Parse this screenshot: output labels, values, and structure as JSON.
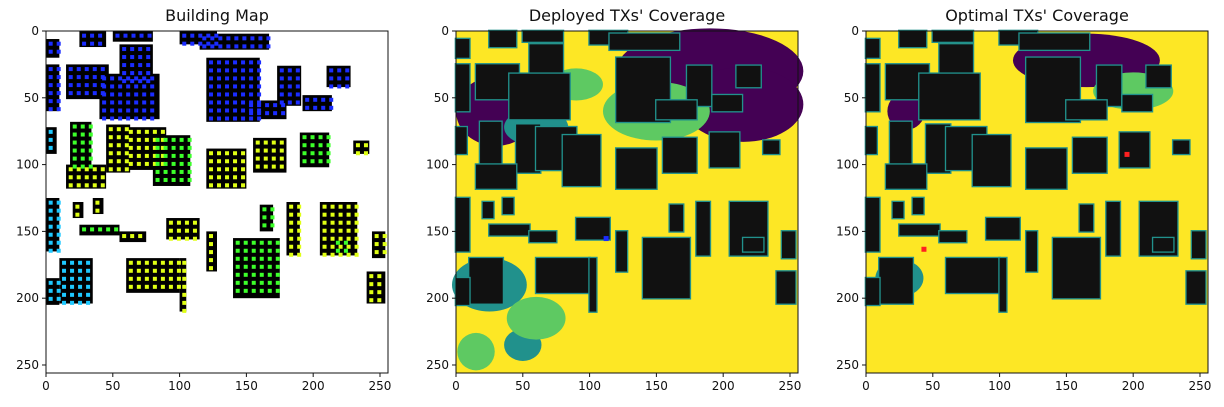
{
  "chart_data": [
    {
      "type": "heatmap",
      "title": "Building Map",
      "xlim": [
        0,
        256
      ],
      "ylim": [
        256,
        0
      ],
      "x_ticks": [
        0,
        50,
        100,
        150,
        200,
        250
      ],
      "y_ticks": [
        0,
        50,
        100,
        150,
        200,
        250
      ],
      "colors": {
        "background": "#ffffff",
        "building": "#000000",
        "marker_blue": "#1a2cff",
        "marker_cyan": "#1ec8ff",
        "marker_green": "#3cff2a",
        "marker_yellow": "#e0ff14"
      }
    },
    {
      "type": "heatmap",
      "title": "Deployed TXs' Coverage",
      "xlim": [
        0,
        256
      ],
      "ylim": [
        256,
        0
      ],
      "x_ticks": [
        0,
        50,
        100,
        150,
        200,
        250
      ],
      "y_ticks": [
        0,
        50,
        100,
        150,
        200,
        250
      ],
      "colors": {
        "covered": "#fde725",
        "partial": "#5ec962",
        "weak": "#21918c",
        "uncovered": "#440154",
        "building": "#111111",
        "tx": "#1a2cff"
      }
    },
    {
      "type": "heatmap",
      "title": "Optimal TXs' Coverage",
      "xlim": [
        0,
        256
      ],
      "ylim": [
        256,
        0
      ],
      "x_ticks": [
        0,
        50,
        100,
        150,
        200,
        250
      ],
      "y_ticks": [
        0,
        50,
        100,
        150,
        200,
        250
      ],
      "colors": {
        "covered": "#fde725",
        "partial": "#5ec962",
        "weak": "#21918c",
        "uncovered": "#440154",
        "building": "#111111",
        "tx": "#ff2020"
      }
    }
  ]
}
